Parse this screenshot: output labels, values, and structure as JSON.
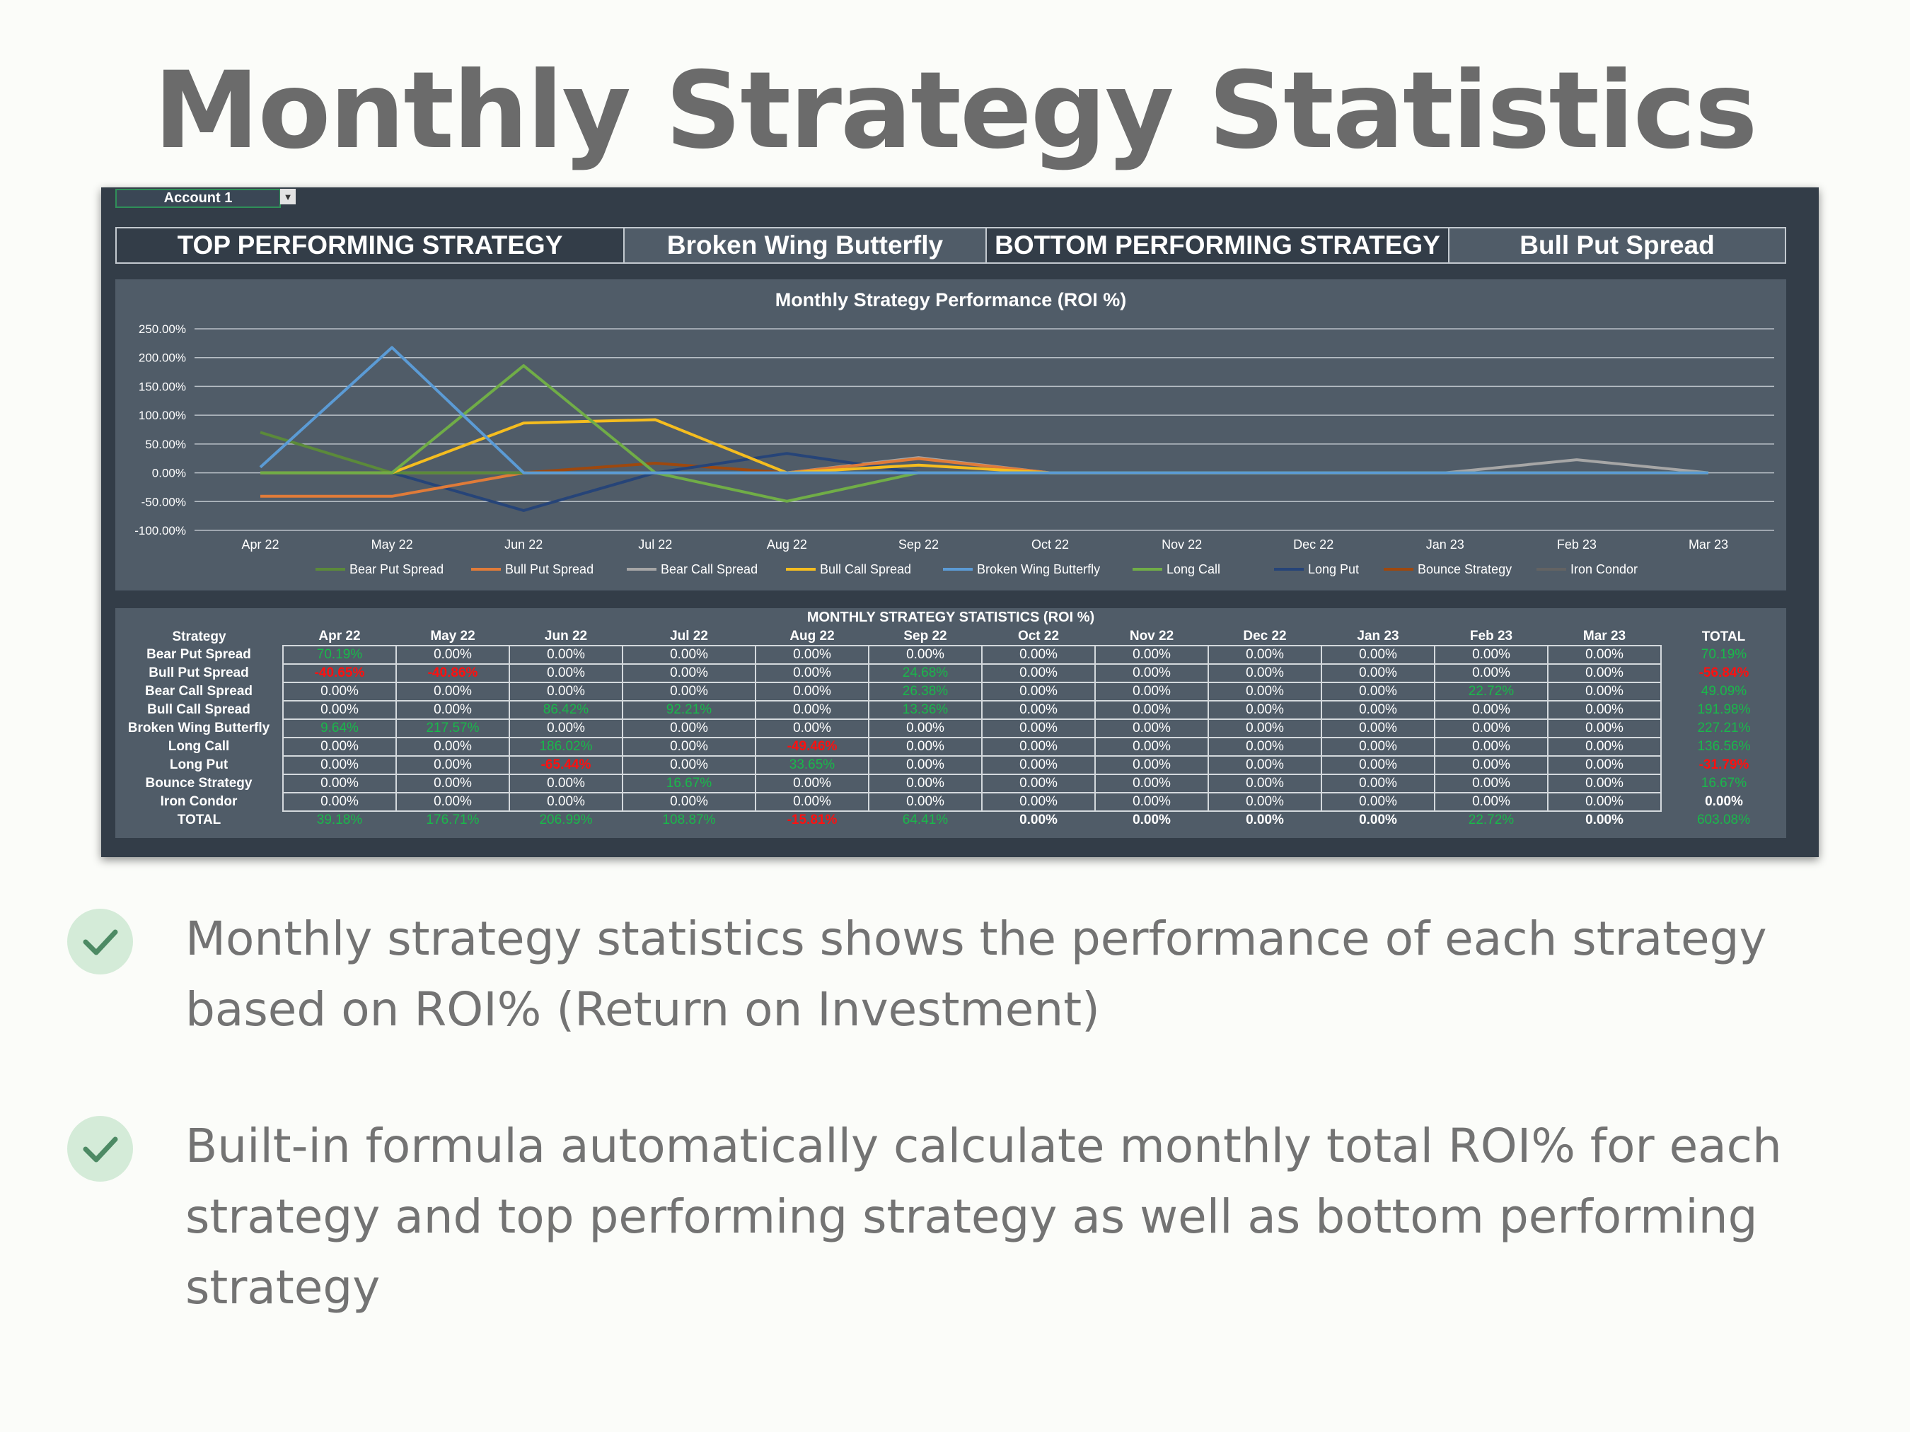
{
  "page": {
    "title": "Monthly Strategy Statistics",
    "bullets": [
      "Monthly strategy statistics shows the performance of each strategy based on ROI% (Return on Investment)",
      "Built-in formula automatically calculate monthly total ROI% for each strategy and top performing strategy as well as bottom performing strategy"
    ]
  },
  "spreadsheet": {
    "account": "Account 1",
    "top_label": "TOP PERFORMING STRATEGY",
    "top_value": "Broken Wing Butterfly",
    "bottom_label": "BOTTOM PERFORMING STRATEGY",
    "bottom_value": "Bull Put Spread",
    "table_title": "MONTHLY STRATEGY STATISTICS (ROI %)",
    "columns": [
      "Strategy",
      "Apr 22",
      "May 22",
      "Jun 22",
      "Jul 22",
      "Aug 22",
      "Sep 22",
      "Oct 22",
      "Nov 22",
      "Dec 22",
      "Jan 23",
      "Feb 23",
      "Mar 23",
      "TOTAL"
    ],
    "rows": [
      {
        "name": "Bear Put Spread",
        "values": [
          "70.19%",
          "0.00%",
          "0.00%",
          "0.00%",
          "0.00%",
          "0.00%",
          "0.00%",
          "0.00%",
          "0.00%",
          "0.00%",
          "0.00%",
          "0.00%",
          "70.19%"
        ]
      },
      {
        "name": "Bull Put Spread",
        "values": [
          "-40.65%",
          "-40.86%",
          "0.00%",
          "0.00%",
          "0.00%",
          "24.68%",
          "0.00%",
          "0.00%",
          "0.00%",
          "0.00%",
          "0.00%",
          "0.00%",
          "-56.84%"
        ]
      },
      {
        "name": "Bear Call Spread",
        "values": [
          "0.00%",
          "0.00%",
          "0.00%",
          "0.00%",
          "0.00%",
          "26.38%",
          "0.00%",
          "0.00%",
          "0.00%",
          "0.00%",
          "22.72%",
          "0.00%",
          "49.09%"
        ]
      },
      {
        "name": "Bull Call Spread",
        "values": [
          "0.00%",
          "0.00%",
          "86.42%",
          "92.21%",
          "0.00%",
          "13.36%",
          "0.00%",
          "0.00%",
          "0.00%",
          "0.00%",
          "0.00%",
          "0.00%",
          "191.98%"
        ]
      },
      {
        "name": "Broken Wing Butterfly",
        "values": [
          "9.64%",
          "217.57%",
          "0.00%",
          "0.00%",
          "0.00%",
          "0.00%",
          "0.00%",
          "0.00%",
          "0.00%",
          "0.00%",
          "0.00%",
          "0.00%",
          "227.21%"
        ]
      },
      {
        "name": "Long Call",
        "values": [
          "0.00%",
          "0.00%",
          "186.02%",
          "0.00%",
          "-49.46%",
          "0.00%",
          "0.00%",
          "0.00%",
          "0.00%",
          "0.00%",
          "0.00%",
          "0.00%",
          "136.56%"
        ]
      },
      {
        "name": "Long Put",
        "values": [
          "0.00%",
          "0.00%",
          "-65.44%",
          "0.00%",
          "33.65%",
          "0.00%",
          "0.00%",
          "0.00%",
          "0.00%",
          "0.00%",
          "0.00%",
          "0.00%",
          "-31.79%"
        ]
      },
      {
        "name": "Bounce Strategy",
        "values": [
          "0.00%",
          "0.00%",
          "0.00%",
          "16.67%",
          "0.00%",
          "0.00%",
          "0.00%",
          "0.00%",
          "0.00%",
          "0.00%",
          "0.00%",
          "0.00%",
          "16.67%"
        ]
      },
      {
        "name": "Iron Condor",
        "values": [
          "0.00%",
          "0.00%",
          "0.00%",
          "0.00%",
          "0.00%",
          "0.00%",
          "0.00%",
          "0.00%",
          "0.00%",
          "0.00%",
          "0.00%",
          "0.00%",
          "0.00%"
        ]
      }
    ],
    "total_row": {
      "name": "TOTAL",
      "values": [
        "39.18%",
        "176.71%",
        "206.99%",
        "108.87%",
        "-15.81%",
        "64.41%",
        "0.00%",
        "0.00%",
        "0.00%",
        "0.00%",
        "22.72%",
        "0.00%",
        "603.08%"
      ]
    }
  },
  "chart_data": {
    "type": "line",
    "title": "Monthly Strategy Performance (ROI %)",
    "xlabel": "",
    "ylabel": "",
    "categories": [
      "Apr 22",
      "May 22",
      "Jun 22",
      "Jul 22",
      "Aug 22",
      "Sep 22",
      "Oct 22",
      "Nov 22",
      "Dec 22",
      "Jan 23",
      "Feb 23",
      "Mar 23"
    ],
    "ylim": [
      -100,
      250
    ],
    "ytick_labels": [
      "250.00%",
      "200.00%",
      "150.00%",
      "100.00%",
      "50.00%",
      "0.00%",
      "-50.00%",
      "-100.00%"
    ],
    "grid": true,
    "legend_position": "bottom",
    "series": [
      {
        "name": "Bear Put Spread",
        "color": "#5b8a3a",
        "values": [
          70.19,
          0,
          0,
          0,
          0,
          0,
          0,
          0,
          0,
          0,
          0,
          0
        ]
      },
      {
        "name": "Bull Put Spread",
        "color": "#e07b39",
        "values": [
          -40.65,
          -40.86,
          0,
          0,
          0,
          24.68,
          0,
          0,
          0,
          0,
          0,
          0
        ]
      },
      {
        "name": "Bear Call Spread",
        "color": "#a6a6a6",
        "values": [
          0,
          0,
          0,
          0,
          0,
          26.38,
          0,
          0,
          0,
          0,
          22.72,
          0
        ]
      },
      {
        "name": "Bull Call Spread",
        "color": "#f5bd1f",
        "values": [
          0,
          0,
          86.42,
          92.21,
          0,
          13.36,
          0,
          0,
          0,
          0,
          0,
          0
        ]
      },
      {
        "name": "Broken Wing Butterfly",
        "color": "#5b9bd5",
        "values": [
          9.64,
          217.57,
          0,
          0,
          0,
          0,
          0,
          0,
          0,
          0,
          0,
          0
        ]
      },
      {
        "name": "Long Call",
        "color": "#70ad47",
        "values": [
          0,
          0,
          186.02,
          0,
          -49.46,
          0,
          0,
          0,
          0,
          0,
          0,
          0
        ]
      },
      {
        "name": "Long Put",
        "color": "#264478",
        "values": [
          0,
          0,
          -65.44,
          0,
          33.65,
          0,
          0,
          0,
          0,
          0,
          0,
          0
        ]
      },
      {
        "name": "Bounce Strategy",
        "color": "#9e480e",
        "values": [
          0,
          0,
          0,
          16.67,
          0,
          0,
          0,
          0,
          0,
          0,
          0,
          0
        ]
      },
      {
        "name": "Iron Condor",
        "color": "#636363",
        "values": [
          0,
          0,
          0,
          0,
          0,
          0,
          0,
          0,
          0,
          0,
          0,
          0
        ]
      }
    ]
  }
}
